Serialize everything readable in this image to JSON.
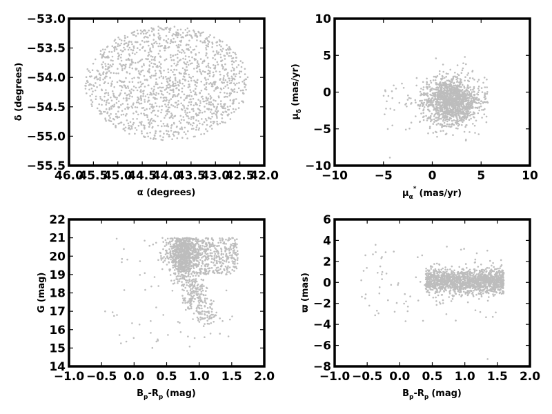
{
  "figure": {
    "point_color": "#bdbdbd",
    "frame_color": "#000000",
    "background": "#ffffff"
  },
  "chart_data": [
    {
      "type": "scatter",
      "title": "",
      "xlabel": "α (degrees)",
      "ylabel": "δ (degrees)",
      "xlim": [
        46.0,
        42.0
      ],
      "ylim": [
        -55.5,
        -53.0
      ],
      "x_inverted": true,
      "xticks": [
        "46.0",
        "45.5",
        "45.0",
        "44.5",
        "44.0",
        "43.5",
        "43.0",
        "42.5",
        "42.0"
      ],
      "yticks": [
        "−53.0",
        "−53.5",
        "−54.0",
        "−54.5",
        "−55.0",
        "−55.5"
      ],
      "grid": false,
      "distribution": {
        "shape": "uniform ellipse",
        "center": [
          44.0,
          -54.1
        ],
        "half_width_x": 1.68,
        "half_height_y": 0.97,
        "n_points_approx": 1500
      }
    },
    {
      "type": "scatter",
      "title": "",
      "xlabel": "μ_α* (mas/yr)",
      "ylabel": "μ_δ (mas/yr)",
      "xlim": [
        -10,
        10
      ],
      "ylim": [
        -10,
        10
      ],
      "xticks": [
        "−10",
        "−5",
        "0",
        "5",
        "10"
      ],
      "yticks": [
        "10",
        "5",
        "0",
        "−5",
        "−10"
      ],
      "grid": false,
      "distribution": {
        "shape": "truncated cluster (cut at x ≈ 5.7)",
        "center": [
          2.0,
          -1.2
        ],
        "spread": [
          1.4,
          1.6
        ],
        "x_max": 5.7,
        "sparse_tail_x_min": -5.0,
        "n_points_approx": 1500
      }
    },
    {
      "type": "scatter",
      "title": "",
      "xlabel": "B_p-R_p (mag)",
      "ylabel": "G (mag)",
      "xlim": [
        -1.0,
        2.0
      ],
      "ylim": [
        14,
        22
      ],
      "xticks": [
        "−1.0",
        "−0.5",
        "0.0",
        "0.5",
        "1.0",
        "1.5",
        "2.0"
      ],
      "yticks": [
        "22",
        "21",
        "20",
        "19",
        "18",
        "17",
        "16",
        "15",
        "14"
      ],
      "grid": false,
      "distribution": {
        "shape": "color-magnitude diagram",
        "faint_limit_G": 21.0,
        "main_clump": {
          "x": 0.75,
          "y": 20.2
        },
        "branch_to_bright": {
          "x_from": 0.7,
          "x_to": 1.1,
          "G_from": 20.0,
          "G_to": 16.5
        },
        "red_edge_x": 1.6,
        "n_points_approx": 1500
      }
    },
    {
      "type": "scatter",
      "title": "",
      "xlabel": "B_p-R_p (mag)",
      "ylabel": "ϖ (mas)",
      "xlim": [
        -1.0,
        2.0
      ],
      "ylim": [
        -8,
        6
      ],
      "xticks": [
        "−1.0",
        "−0.5",
        "0.0",
        "0.5",
        "1.0",
        "1.5",
        "2.0"
      ],
      "yticks": [
        "6",
        "4",
        "2",
        "0",
        "−2",
        "−4",
        "−6",
        "−8"
      ],
      "grid": false,
      "distribution": {
        "shape": "horizontal band",
        "x_range": [
          0.4,
          1.6
        ],
        "center_y": 0.1,
        "spread_y": 0.6,
        "outliers_y_range": [
          -7.4,
          3.6
        ],
        "n_points_approx": 1500
      }
    }
  ],
  "panels": [
    {
      "id": "radec",
      "xlabel": "α (degrees)",
      "ylabel": "δ (degrees)",
      "xticks": [
        {
          "label": "46.0",
          "value": 46.0
        },
        {
          "label": "45.5",
          "value": 45.5
        },
        {
          "label": "45.0",
          "value": 45.0
        },
        {
          "label": "44.5",
          "value": 44.5
        },
        {
          "label": "44.0",
          "value": 44.0
        },
        {
          "label": "43.5",
          "value": 43.5
        },
        {
          "label": "43.0",
          "value": 43.0
        },
        {
          "label": "42.5",
          "value": 42.5
        },
        {
          "label": "42.0",
          "value": 42.0
        }
      ],
      "yticks": [
        {
          "label": "−53.0",
          "value": -53.0
        },
        {
          "label": "−53.5",
          "value": -53.5
        },
        {
          "label": "−54.0",
          "value": -54.0
        },
        {
          "label": "−54.5",
          "value": -54.5
        },
        {
          "label": "−55.0",
          "value": -55.0
        },
        {
          "label": "−55.5",
          "value": -55.5
        }
      ]
    },
    {
      "id": "pm",
      "xlabel": "μα* (mas/yr)",
      "ylabel": "μδ (mas/yr)",
      "xticks": [
        {
          "label": "−10",
          "value": -10
        },
        {
          "label": "−5",
          "value": -5
        },
        {
          "label": "0",
          "value": 0
        },
        {
          "label": "5",
          "value": 5
        },
        {
          "label": "10",
          "value": 10
        }
      ],
      "yticks": [
        {
          "label": "10",
          "value": 10
        },
        {
          "label": "5",
          "value": 5
        },
        {
          "label": "0",
          "value": 0
        },
        {
          "label": "−5",
          "value": -5
        },
        {
          "label": "−10",
          "value": -10
        }
      ]
    },
    {
      "id": "cmd",
      "xlabel": "Bp-Rp (mag)",
      "ylabel": "G (mag)",
      "xticks": [
        {
          "label": "−1.0",
          "value": -1.0
        },
        {
          "label": "−0.5",
          "value": -0.5
        },
        {
          "label": "0.0",
          "value": 0.0
        },
        {
          "label": "0.5",
          "value": 0.5
        },
        {
          "label": "1.0",
          "value": 1.0
        },
        {
          "label": "1.5",
          "value": 1.5
        },
        {
          "label": "2.0",
          "value": 2.0
        }
      ],
      "yticks": [
        {
          "label": "22",
          "value": 22
        },
        {
          "label": "21",
          "value": 21
        },
        {
          "label": "20",
          "value": 20
        },
        {
          "label": "19",
          "value": 19
        },
        {
          "label": "18",
          "value": 18
        },
        {
          "label": "17",
          "value": 17
        },
        {
          "label": "16",
          "value": 16
        },
        {
          "label": "15",
          "value": 15
        },
        {
          "label": "14",
          "value": 14
        }
      ]
    },
    {
      "id": "plx",
      "xlabel": "Bp-Rp (mag)",
      "ylabel": "ϖ (mas)",
      "xticks": [
        {
          "label": "−1.0",
          "value": -1.0
        },
        {
          "label": "−0.5",
          "value": -0.5
        },
        {
          "label": "0.0",
          "value": 0.0
        },
        {
          "label": "0.5",
          "value": 0.5
        },
        {
          "label": "1.0",
          "value": 1.0
        },
        {
          "label": "1.5",
          "value": 1.5
        },
        {
          "label": "2.0",
          "value": 2.0
        }
      ],
      "yticks": [
        {
          "label": "6",
          "value": 6
        },
        {
          "label": "4",
          "value": 4
        },
        {
          "label": "2",
          "value": 2
        },
        {
          "label": "0",
          "value": 0
        },
        {
          "label": "−2",
          "value": -2
        },
        {
          "label": "−4",
          "value": -4
        },
        {
          "label": "−6",
          "value": -6
        },
        {
          "label": "−8",
          "value": -8
        }
      ]
    }
  ]
}
